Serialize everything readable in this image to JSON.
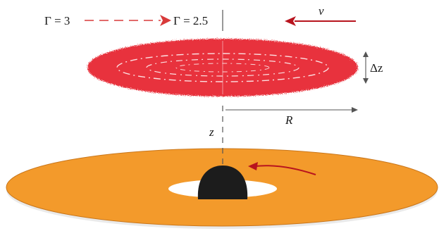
{
  "colors": {
    "blob": "#e8323c",
    "disk": "#f39a2b",
    "disk_edge": "#c9761a",
    "black_hole": "#1c1c1c",
    "arrow_red": "#b8141e",
    "dash_red": "#d83a3a",
    "guide": "#555555",
    "text": "#1a1a1a"
  },
  "labels": {
    "gamma_start": "Γ = 3",
    "gamma_end": "Γ = 2.5",
    "velocity": "v",
    "delta_z": "Δz",
    "radius": "R",
    "height": "z"
  },
  "icons": {
    "velocity_arrow": "left-arrow-icon",
    "gamma_arrow": "right-arrow-icon",
    "rotation_arrow": "curved-arrow-icon"
  }
}
